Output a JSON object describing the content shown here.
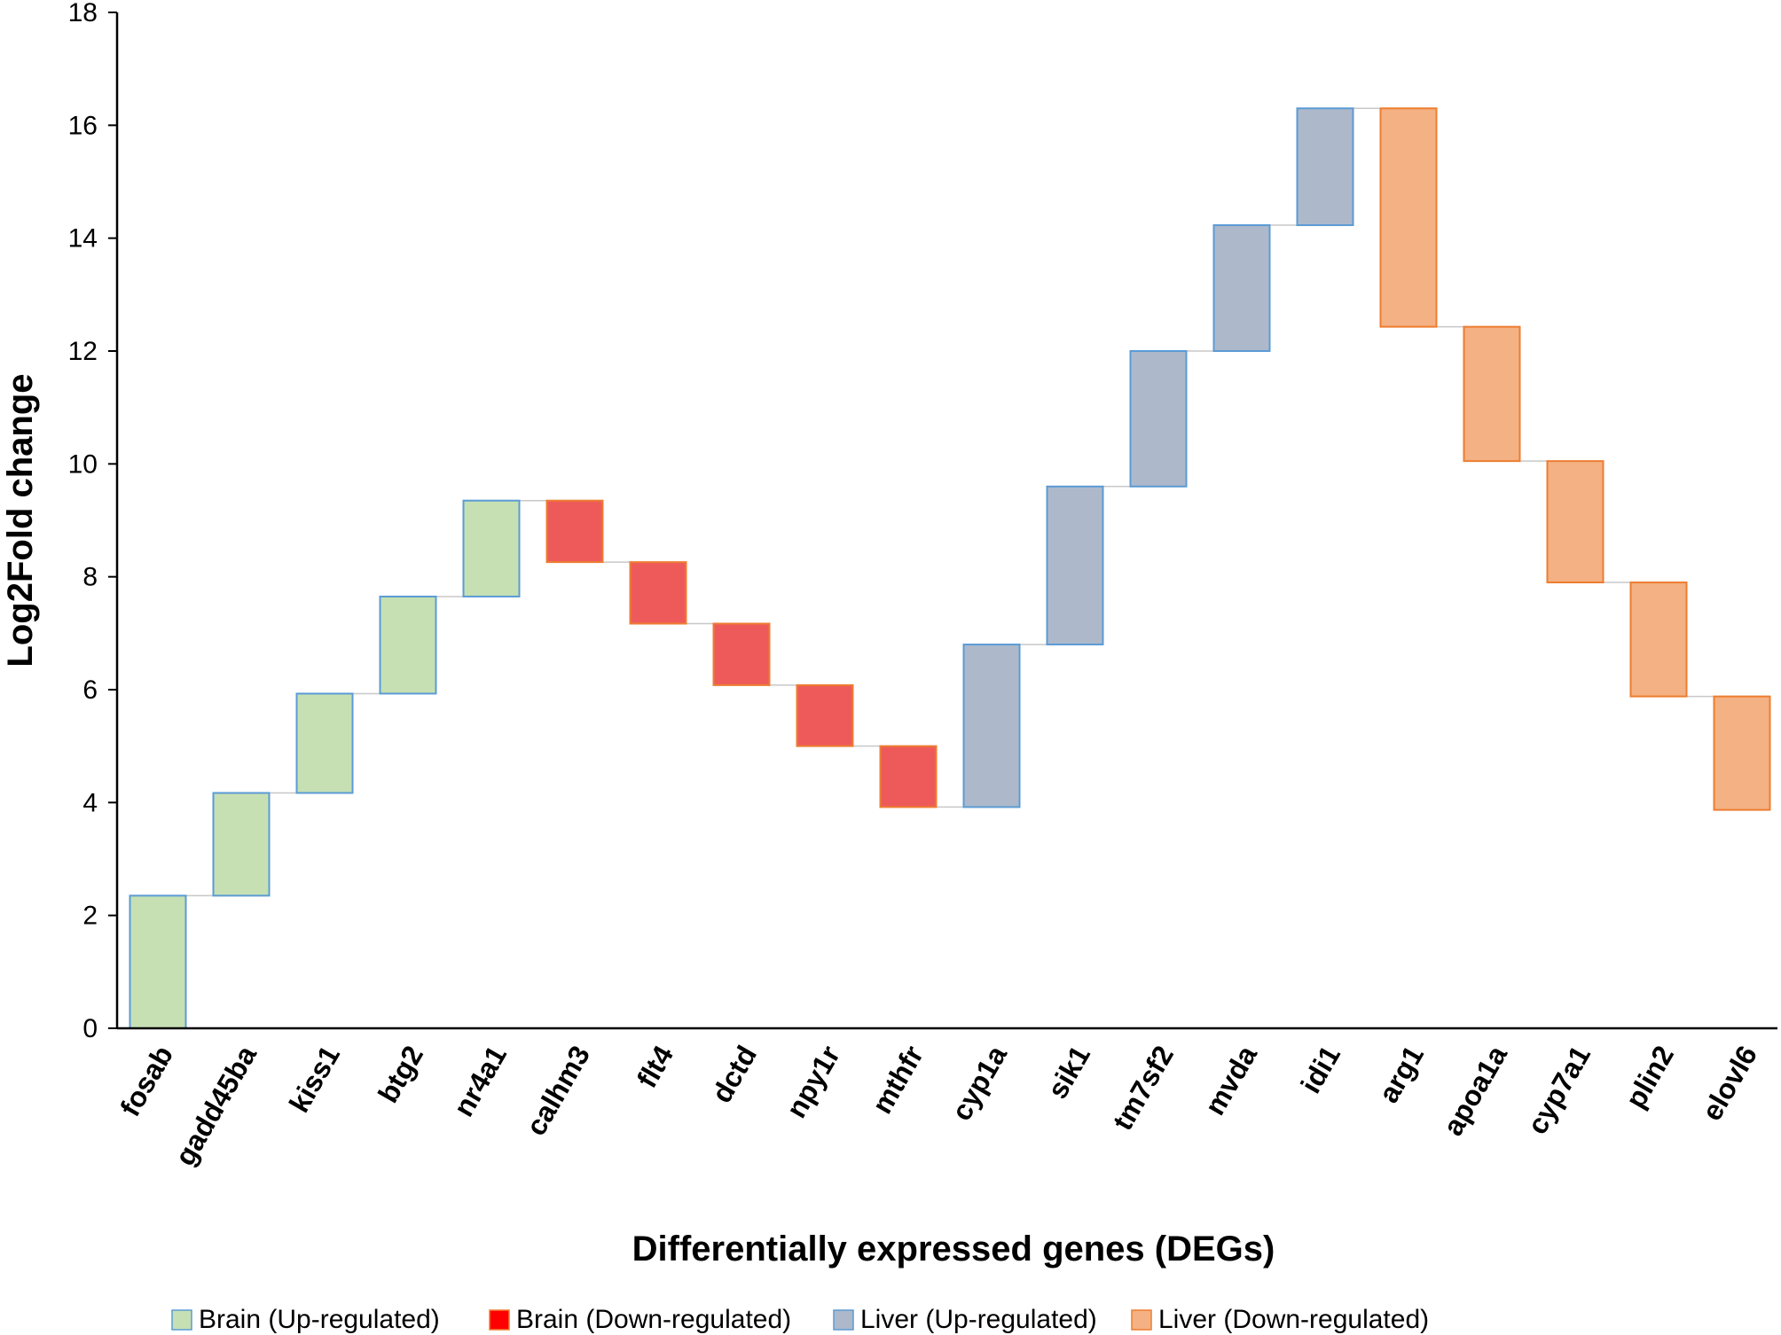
{
  "chart_data": {
    "type": "waterfall",
    "title": "",
    "xlabel": "Differentially expressed genes (DEGs)",
    "ylabel": "Log2Fold change",
    "ylim": [
      0,
      18
    ],
    "yticks": [
      "0",
      "2",
      "4",
      "6",
      "8",
      "10",
      "12",
      "14",
      "16",
      "18"
    ],
    "grid": false,
    "legend_position": "bottom",
    "series": [
      {
        "name": "Brain (Up-regulated)",
        "fill": "#c6e0b4",
        "stroke": "#5b9bd5",
        "legend_color": "#c6e0b4"
      },
      {
        "name": "Brain (Down-regulated)",
        "fill": "#ee5a5a",
        "stroke": "#ed7d31",
        "legend_color": "#ff0000"
      },
      {
        "name": "Liver (Up-regulated)",
        "fill": "#adb9ca",
        "stroke": "#5b9bd5",
        "legend_color": "#adb9ca"
      },
      {
        "name": "Liver (Down-regulated)",
        "fill": "#f4b183",
        "stroke": "#ed7d31",
        "legend_color": "#f4b183"
      }
    ],
    "categories": [
      "fosab",
      "gadd45ba",
      "kiss1",
      "btg2",
      "nr4a1",
      "calhm3",
      "flt4",
      "dctd",
      "npy1r",
      "mthfr",
      "cyp1a",
      "sik1",
      "tm7sf2",
      "mvda",
      "idi1",
      "arg1",
      "apoa1a",
      "cyp7a1",
      "plin2",
      "elovl6"
    ],
    "bars": [
      {
        "gene": "fosab",
        "series": 0,
        "start": 0,
        "end": 2.35,
        "change": 2.35
      },
      {
        "gene": "gadd45ba",
        "series": 0,
        "start": 2.35,
        "end": 4.17,
        "change": 1.82
      },
      {
        "gene": "kiss1",
        "series": 0,
        "start": 4.17,
        "end": 5.93,
        "change": 1.76
      },
      {
        "gene": "btg2",
        "series": 0,
        "start": 5.93,
        "end": 7.65,
        "change": 1.72
      },
      {
        "gene": "nr4a1",
        "series": 0,
        "start": 7.65,
        "end": 9.35,
        "change": 1.7
      },
      {
        "gene": "calhm3",
        "series": 1,
        "start": 9.35,
        "end": 8.26,
        "change": -1.09
      },
      {
        "gene": "flt4",
        "series": 1,
        "start": 8.26,
        "end": 7.17,
        "change": -1.09
      },
      {
        "gene": "dctd",
        "series": 1,
        "start": 7.17,
        "end": 6.08,
        "change": -1.09
      },
      {
        "gene": "npy1r",
        "series": 1,
        "start": 6.08,
        "end": 5.0,
        "change": -1.08
      },
      {
        "gene": "mthfr",
        "series": 1,
        "start": 5.0,
        "end": 3.92,
        "change": -1.08
      },
      {
        "gene": "cyp1a",
        "series": 2,
        "start": 3.92,
        "end": 6.8,
        "change": 2.88
      },
      {
        "gene": "sik1",
        "series": 2,
        "start": 6.8,
        "end": 9.6,
        "change": 2.8
      },
      {
        "gene": "tm7sf2",
        "series": 2,
        "start": 9.6,
        "end": 12.0,
        "change": 2.4
      },
      {
        "gene": "mvda",
        "series": 2,
        "start": 12.0,
        "end": 14.23,
        "change": 2.23
      },
      {
        "gene": "idi1",
        "series": 2,
        "start": 14.23,
        "end": 16.3,
        "change": 2.07
      },
      {
        "gene": "arg1",
        "series": 3,
        "start": 16.3,
        "end": 12.43,
        "change": -3.87
      },
      {
        "gene": "apoa1a",
        "series": 3,
        "start": 12.43,
        "end": 10.05,
        "change": -2.38
      },
      {
        "gene": "cyp7a1",
        "series": 3,
        "start": 10.05,
        "end": 7.9,
        "change": -2.15
      },
      {
        "gene": "plin2",
        "series": 3,
        "start": 7.9,
        "end": 5.88,
        "change": -2.02
      },
      {
        "gene": "elovl6",
        "series": 3,
        "start": 5.88,
        "end": 3.87,
        "change": -2.01
      }
    ]
  }
}
